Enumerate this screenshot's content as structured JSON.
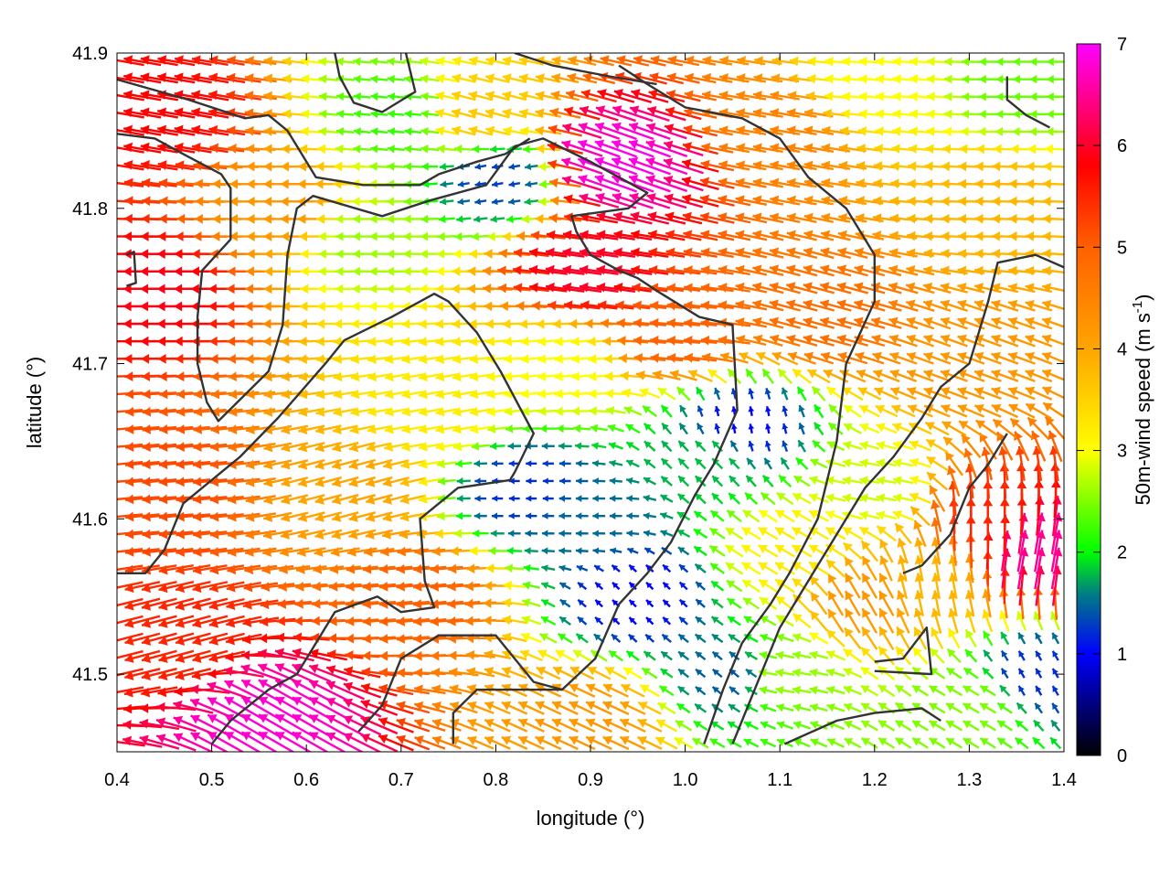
{
  "chart_data": {
    "type": "vector-field",
    "xlabel": "longitude (°)",
    "ylabel": "latitude (°)",
    "xlim": [
      0.4,
      1.4
    ],
    "ylim": [
      41.45,
      41.9
    ],
    "xticks": [
      {
        "value": 0.4,
        "label": "0.4"
      },
      {
        "value": 0.5,
        "label": "0.5"
      },
      {
        "value": 0.6,
        "label": "0.6"
      },
      {
        "value": 0.7,
        "label": "0.7"
      },
      {
        "value": 0.8,
        "label": "0.8"
      },
      {
        "value": 0.9,
        "label": "0.9"
      },
      {
        "value": 1.0,
        "label": "1.0"
      },
      {
        "value": 1.1,
        "label": "1.1"
      },
      {
        "value": 1.2,
        "label": "1.2"
      },
      {
        "value": 1.3,
        "label": "1.3"
      },
      {
        "value": 1.4,
        "label": "1.4"
      }
    ],
    "yticks": [
      {
        "value": 41.5,
        "label": "41.5"
      },
      {
        "value": 41.6,
        "label": "41.6"
      },
      {
        "value": 41.7,
        "label": "41.7"
      },
      {
        "value": 41.8,
        "label": "41.8"
      },
      {
        "value": 41.9,
        "label": "41.9"
      }
    ],
    "colorbar": {
      "label_main": "50m-wind speed (m s",
      "label_sup": "-1",
      "label_end": ")",
      "range": [
        0,
        7
      ],
      "ticks": [
        "0",
        "1",
        "2",
        "3",
        "4",
        "5",
        "6",
        "7"
      ],
      "colors": [
        {
          "v": 0,
          "c": "#000000"
        },
        {
          "v": 1,
          "c": "#0000ff"
        },
        {
          "v": 1.6,
          "c": "#008080"
        },
        {
          "v": 2,
          "c": "#00ff00"
        },
        {
          "v": 3,
          "c": "#ffff00"
        },
        {
          "v": 4,
          "c": "#ffa500"
        },
        {
          "v": 5,
          "c": "#ff6000"
        },
        {
          "v": 5.8,
          "c": "#ff0000"
        },
        {
          "v": 7,
          "c": "#ff00ff"
        }
      ]
    },
    "wind_regions": [
      {
        "lon": 0.45,
        "lat": 41.86,
        "speed": 5.8,
        "dir_deg": 170
      },
      {
        "lon": 0.45,
        "lat": 41.75,
        "speed": 5.9,
        "dir_deg": 180
      },
      {
        "lon": 0.45,
        "lat": 41.62,
        "speed": 5.2,
        "dir_deg": 185
      },
      {
        "lon": 0.47,
        "lat": 41.52,
        "speed": 5.5,
        "dir_deg": 195
      },
      {
        "lon": 0.56,
        "lat": 41.47,
        "speed": 6.8,
        "dir_deg": 150
      },
      {
        "lon": 0.58,
        "lat": 41.8,
        "speed": 4.2,
        "dir_deg": 180
      },
      {
        "lon": 0.66,
        "lat": 41.78,
        "speed": 2.6,
        "dir_deg": 180
      },
      {
        "lon": 0.7,
        "lat": 41.86,
        "speed": 2.2,
        "dir_deg": 175
      },
      {
        "lon": 0.65,
        "lat": 41.62,
        "speed": 4.0,
        "dir_deg": 195
      },
      {
        "lon": 0.72,
        "lat": 41.55,
        "speed": 5.0,
        "dir_deg": 185
      },
      {
        "lon": 0.74,
        "lat": 41.67,
        "speed": 3.2,
        "dir_deg": 190
      },
      {
        "lon": 0.8,
        "lat": 41.82,
        "speed": 1.3,
        "dir_deg": 190
      },
      {
        "lon": 0.78,
        "lat": 41.86,
        "speed": 3.6,
        "dir_deg": 165
      },
      {
        "lon": 0.83,
        "lat": 41.62,
        "speed": 1.2,
        "dir_deg": 180
      },
      {
        "lon": 0.87,
        "lat": 41.7,
        "speed": 3.0,
        "dir_deg": 185
      },
      {
        "lon": 0.9,
        "lat": 41.76,
        "speed": 6.0,
        "dir_deg": 172
      },
      {
        "lon": 0.93,
        "lat": 41.83,
        "speed": 6.9,
        "dir_deg": 160
      },
      {
        "lon": 0.9,
        "lat": 41.6,
        "speed": 1.5,
        "dir_deg": 180
      },
      {
        "lon": 0.95,
        "lat": 41.55,
        "speed": 1.0,
        "dir_deg": 135
      },
      {
        "lon": 0.9,
        "lat": 41.47,
        "speed": 4.2,
        "dir_deg": 155
      },
      {
        "lon": 1.0,
        "lat": 41.72,
        "speed": 5.0,
        "dir_deg": 175
      },
      {
        "lon": 1.03,
        "lat": 41.64,
        "speed": 1.8,
        "dir_deg": 135
      },
      {
        "lon": 1.06,
        "lat": 41.66,
        "speed": 1.0,
        "dir_deg": 100
      },
      {
        "lon": 1.05,
        "lat": 41.5,
        "speed": 1.4,
        "dir_deg": 140
      },
      {
        "lon": 1.1,
        "lat": 41.85,
        "speed": 4.5,
        "dir_deg": 170
      },
      {
        "lon": 1.15,
        "lat": 41.73,
        "speed": 4.8,
        "dir_deg": 165
      },
      {
        "lon": 1.12,
        "lat": 41.58,
        "speed": 3.2,
        "dir_deg": 150
      },
      {
        "lon": 1.1,
        "lat": 41.5,
        "speed": 2.6,
        "dir_deg": 170
      },
      {
        "lon": 1.2,
        "lat": 41.88,
        "speed": 3.0,
        "dir_deg": 175
      },
      {
        "lon": 1.2,
        "lat": 41.62,
        "speed": 2.8,
        "dir_deg": 170
      },
      {
        "lon": 1.19,
        "lat": 41.55,
        "speed": 4.2,
        "dir_deg": 120
      },
      {
        "lon": 1.26,
        "lat": 41.56,
        "speed": 3.8,
        "dir_deg": 100
      },
      {
        "lon": 1.32,
        "lat": 41.6,
        "speed": 5.5,
        "dir_deg": 90
      },
      {
        "lon": 1.37,
        "lat": 41.58,
        "speed": 6.5,
        "dir_deg": 80
      },
      {
        "lon": 1.3,
        "lat": 41.48,
        "speed": 2.5,
        "dir_deg": 150
      },
      {
        "lon": 1.37,
        "lat": 41.5,
        "speed": 1.2,
        "dir_deg": 120
      },
      {
        "lon": 1.33,
        "lat": 41.8,
        "speed": 3.8,
        "dir_deg": 178
      },
      {
        "lon": 1.3,
        "lat": 41.7,
        "speed": 4.2,
        "dir_deg": 160
      },
      {
        "lon": 1.36,
        "lat": 41.88,
        "speed": 2.4,
        "dir_deg": 180
      }
    ],
    "coastlines": [
      [
        [
          0.4,
          41.883
        ],
        [
          0.475,
          41.87
        ],
        [
          0.535,
          41.858
        ],
        [
          0.56,
          41.86
        ],
        [
          0.58,
          41.85
        ],
        [
          0.6,
          41.83
        ],
        [
          0.61,
          41.82
        ],
        [
          0.66,
          41.815
        ],
        [
          0.72,
          41.815
        ],
        [
          0.74,
          41.822
        ],
        [
          0.78,
          41.83
        ],
        [
          0.81,
          41.835
        ],
        [
          0.836,
          41.845
        ]
      ],
      [
        [
          0.4,
          41.848
        ],
        [
          0.44,
          41.845
        ],
        [
          0.47,
          41.835
        ],
        [
          0.51,
          41.822
        ],
        [
          0.52,
          41.813
        ],
        [
          0.52,
          41.78
        ],
        [
          0.49,
          41.76
        ],
        [
          0.485,
          41.73
        ],
        [
          0.485,
          41.7
        ],
        [
          0.495,
          41.675
        ],
        [
          0.507,
          41.663
        ],
        [
          0.56,
          41.695
        ],
        [
          0.575,
          41.725
        ],
        [
          0.58,
          41.77
        ],
        [
          0.59,
          41.8
        ],
        [
          0.607,
          41.808
        ],
        [
          0.68,
          41.795
        ],
        [
          0.73,
          41.805
        ],
        [
          0.79,
          41.815
        ],
        [
          0.82,
          41.84
        ],
        [
          0.85,
          41.845
        ],
        [
          0.9,
          41.83
        ],
        [
          0.93,
          41.82
        ],
        [
          0.96,
          41.81
        ],
        [
          0.94,
          41.8
        ],
        [
          0.88,
          41.795
        ],
        [
          0.885,
          41.785
        ],
        [
          0.9,
          41.77
        ],
        [
          0.93,
          41.76
        ],
        [
          0.95,
          41.755
        ],
        [
          0.975,
          41.745
        ],
        [
          1.015,
          41.73
        ],
        [
          1.05,
          41.725
        ],
        [
          1.055,
          41.67
        ],
        [
          1.03,
          41.635
        ],
        [
          1.01,
          41.615
        ],
        [
          0.985,
          41.585
        ],
        [
          0.96,
          41.565
        ],
        [
          0.93,
          41.545
        ],
        [
          0.905,
          41.51
        ],
        [
          0.87,
          41.49
        ],
        [
          0.84,
          41.495
        ],
        [
          0.8,
          41.525
        ],
        [
          0.74,
          41.525
        ],
        [
          0.7,
          41.51
        ],
        [
          0.68,
          41.48
        ],
        [
          0.655,
          41.463
        ]
      ],
      [
        [
          0.4,
          41.565
        ],
        [
          0.43,
          41.565
        ],
        [
          0.45,
          41.58
        ],
        [
          0.47,
          41.61
        ],
        [
          0.5,
          41.625
        ],
        [
          0.53,
          41.64
        ],
        [
          0.57,
          41.665
        ],
        [
          0.62,
          41.7
        ],
        [
          0.64,
          41.715
        ],
        [
          0.69,
          41.73
        ],
        [
          0.735,
          41.745
        ],
        [
          0.75,
          41.74
        ],
        [
          0.78,
          41.72
        ],
        [
          0.805,
          41.695
        ],
        [
          0.84,
          41.655
        ],
        [
          0.82,
          41.63
        ],
        [
          0.815,
          41.625
        ],
        [
          0.76,
          41.62
        ],
        [
          0.72,
          41.6
        ],
        [
          0.725,
          41.56
        ],
        [
          0.735,
          41.543
        ],
        [
          0.7,
          41.54
        ],
        [
          0.675,
          41.55
        ],
        [
          0.63,
          41.54
        ],
        [
          0.61,
          41.52
        ],
        [
          0.59,
          41.5
        ],
        [
          0.56,
          41.49
        ],
        [
          0.52,
          41.47
        ],
        [
          0.5,
          41.455
        ]
      ],
      [
        [
          0.755,
          41.455
        ],
        [
          0.755,
          41.475
        ],
        [
          0.78,
          41.49
        ],
        [
          0.83,
          41.49
        ],
        [
          0.87,
          41.49
        ]
      ],
      [
        [
          1.02,
          41.455
        ],
        [
          1.04,
          41.49
        ],
        [
          1.06,
          41.52
        ],
        [
          1.09,
          41.545
        ],
        [
          1.11,
          41.565
        ],
        [
          1.14,
          41.6
        ],
        [
          1.16,
          41.65
        ],
        [
          1.17,
          41.7
        ],
        [
          1.2,
          41.74
        ],
        [
          1.2,
          41.77
        ],
        [
          1.17,
          41.8
        ],
        [
          1.13,
          41.82
        ],
        [
          1.1,
          41.845
        ],
        [
          1.06,
          41.858
        ],
        [
          1.0,
          41.865
        ],
        [
          0.96,
          41.88
        ],
        [
          0.93,
          41.892
        ]
      ],
      [
        [
          0.82,
          41.9
        ],
        [
          0.86,
          41.892
        ],
        [
          0.92,
          41.885
        ],
        [
          0.97,
          41.88
        ]
      ],
      [
        [
          1.05,
          41.455
        ],
        [
          1.08,
          41.5
        ],
        [
          1.1,
          41.53
        ],
        [
          1.14,
          41.57
        ],
        [
          1.16,
          41.59
        ],
        [
          1.19,
          41.62
        ],
        [
          1.22,
          41.64
        ],
        [
          1.25,
          41.665
        ],
        [
          1.27,
          41.685
        ],
        [
          1.3,
          41.7
        ],
        [
          1.31,
          41.72
        ],
        [
          1.32,
          41.74
        ],
        [
          1.33,
          41.765
        ],
        [
          1.37,
          41.77
        ],
        [
          1.4,
          41.762
        ]
      ],
      [
        [
          1.23,
          41.565
        ],
        [
          1.25,
          41.57
        ],
        [
          1.28,
          41.59
        ],
        [
          1.3,
          41.62
        ],
        [
          1.32,
          41.635
        ],
        [
          1.34,
          41.655
        ]
      ],
      [
        [
          1.2,
          41.508
        ],
        [
          1.23,
          41.51
        ],
        [
          1.255,
          41.53
        ],
        [
          1.26,
          41.5
        ],
        [
          1.2,
          41.502
        ]
      ],
      [
        [
          1.105,
          41.455
        ],
        [
          1.16,
          41.47
        ],
        [
          1.2,
          41.475
        ],
        [
          1.25,
          41.478
        ],
        [
          1.27,
          41.47
        ]
      ],
      [
        [
          1.34,
          41.885
        ],
        [
          1.34,
          41.87
        ],
        [
          1.36,
          41.86
        ],
        [
          1.385,
          41.852
        ]
      ],
      [
        [
          0.63,
          41.9
        ],
        [
          0.635,
          41.885
        ],
        [
          0.65,
          41.868
        ],
        [
          0.68,
          41.862
        ],
        [
          0.715,
          41.875
        ],
        [
          0.705,
          41.9
        ]
      ],
      [
        [
          0.41,
          41.77
        ],
        [
          0.418,
          41.772
        ],
        [
          0.42,
          41.752
        ],
        [
          0.41,
          41.75
        ]
      ]
    ]
  }
}
